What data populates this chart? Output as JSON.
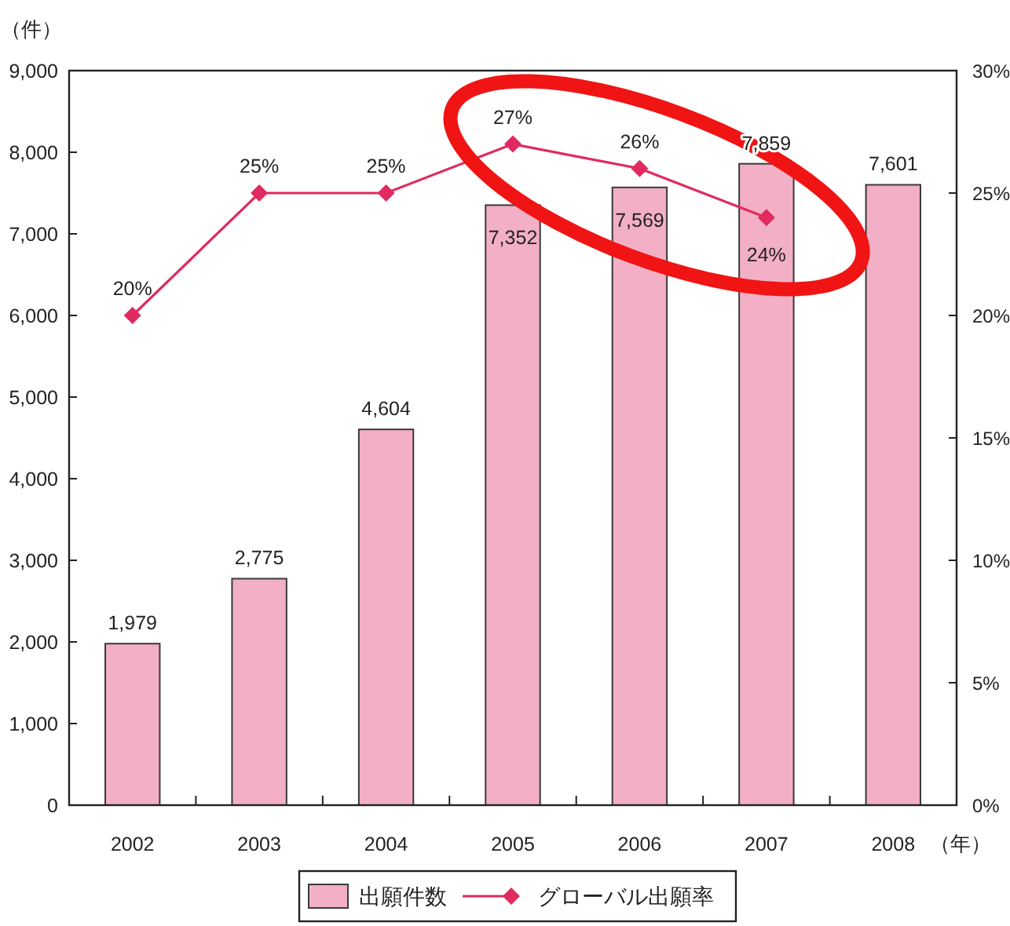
{
  "chart_data": {
    "type": "bar",
    "categories": [
      "2002",
      "2003",
      "2004",
      "2005",
      "2006",
      "2007",
      "2008"
    ],
    "xlabel": "（年）",
    "ylabel": "（件）",
    "ylim": [
      0,
      9000
    ],
    "yticks": [
      0,
      {
        "value": 1000,
        "label": "1,000"
      },
      {
        "value": 2000,
        "label": "2,000"
      },
      {
        "value": 3000,
        "label": "3,000"
      },
      {
        "value": 4000,
        "label": "4,000"
      },
      {
        "value": 5000,
        "label": "5,000"
      },
      {
        "value": 6000,
        "label": "6,000"
      },
      {
        "value": 7000,
        "label": "7,000"
      },
      {
        "value": 8000,
        "label": "8,000"
      },
      {
        "value": 9000,
        "label": "9,000"
      }
    ],
    "y2lim": [
      0,
      30
    ],
    "y2ticks": [
      {
        "value": 0,
        "label": "0%"
      },
      {
        "value": 5,
        "label": "5%"
      },
      {
        "value": 10,
        "label": "10%"
      },
      {
        "value": 15,
        "label": "15%"
      },
      {
        "value": 20,
        "label": "20%"
      },
      {
        "value": 25,
        "label": "25%"
      },
      {
        "value": 30,
        "label": "30%"
      }
    ],
    "series": [
      {
        "name": "出願件数",
        "color": "#f2afc5",
        "values": [
          1979,
          2775,
          4604,
          7352,
          7569,
          7859,
          7601
        ],
        "value_labels": [
          "1,979",
          "2,775",
          "4,604",
          "7,352",
          "7,569",
          "7,859",
          "7,601"
        ]
      },
      {
        "name": "グローバル出願率",
        "type": "line",
        "axis": "y2",
        "color": "#e02a60",
        "values": [
          20,
          25,
          25,
          27,
          26,
          24,
          null
        ],
        "value_labels": [
          "20%",
          "25%",
          "25%",
          "27%",
          "26%",
          "24%",
          null
        ]
      }
    ],
    "marker": "diamond",
    "line_style": "solid",
    "legend": "bottom"
  }
}
